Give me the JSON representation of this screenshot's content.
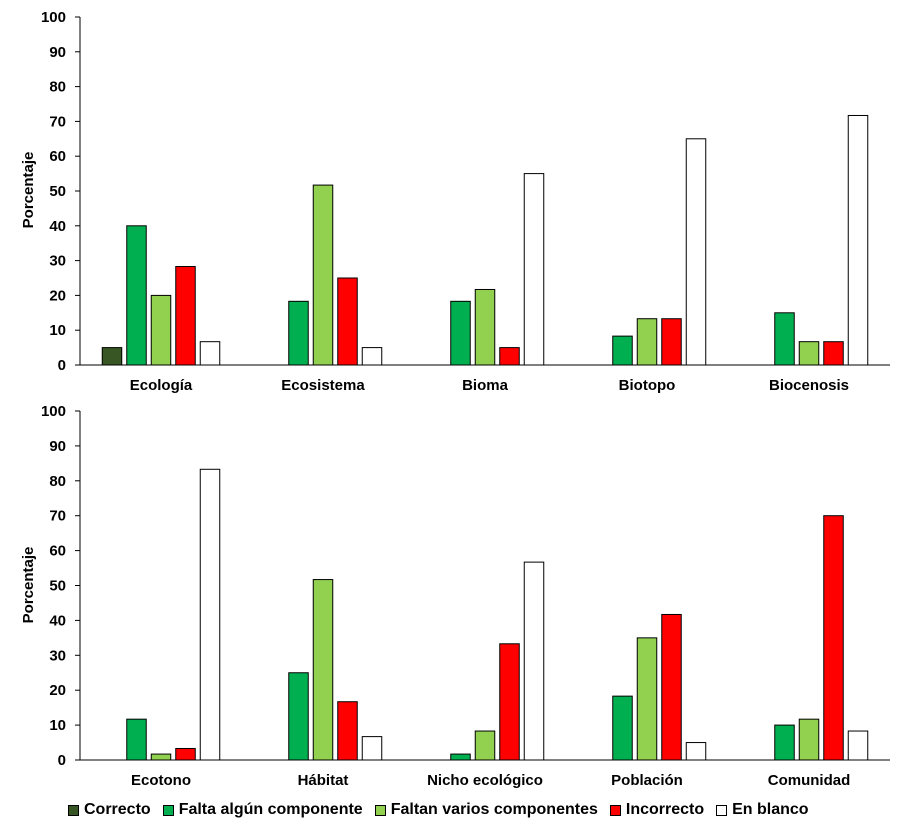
{
  "chart_data": [
    {
      "type": "bar",
      "ylabel": "Porcentaje",
      "ylim": [
        0,
        100
      ],
      "yticks": [
        0,
        10,
        20,
        30,
        40,
        50,
        60,
        70,
        80,
        90,
        100
      ],
      "categories": [
        "Ecología",
        "Ecosistema",
        "Bioma",
        "Biotopo",
        "Biocenosis"
      ],
      "series": [
        {
          "name": "Correcto",
          "values": [
            5,
            0,
            0,
            0,
            0
          ]
        },
        {
          "name": "Falta algún componente",
          "values": [
            40,
            18.3,
            18.3,
            8.3,
            15
          ]
        },
        {
          "name": "Faltan varios componentes",
          "values": [
            20,
            51.7,
            21.7,
            13.3,
            6.7
          ]
        },
        {
          "name": "Incorrecto",
          "values": [
            28.3,
            25,
            5,
            13.3,
            6.7
          ]
        },
        {
          "name": "En blanco",
          "values": [
            6.7,
            5,
            55,
            65,
            71.7
          ]
        }
      ],
      "grid": false,
      "legend": "bottom"
    },
    {
      "type": "bar",
      "ylabel": "Porcentaje",
      "ylim": [
        0,
        100
      ],
      "yticks": [
        0,
        10,
        20,
        30,
        40,
        50,
        60,
        70,
        80,
        90,
        100
      ],
      "categories": [
        "Ecotono",
        "Hábitat",
        "Nicho ecológico",
        "Población",
        "Comunidad"
      ],
      "series": [
        {
          "name": "Correcto",
          "values": [
            0,
            0,
            0,
            0,
            0
          ]
        },
        {
          "name": "Falta algún componente",
          "values": [
            11.7,
            25,
            1.7,
            18.3,
            10
          ]
        },
        {
          "name": "Faltan varios componentes",
          "values": [
            1.7,
            51.7,
            8.3,
            35,
            11.7
          ]
        },
        {
          "name": "Incorrecto",
          "values": [
            3.3,
            16.7,
            33.3,
            41.7,
            70
          ]
        },
        {
          "name": "En blanco",
          "values": [
            83.3,
            6.7,
            56.7,
            5,
            8.3
          ]
        }
      ],
      "grid": false,
      "legend": "bottom"
    }
  ],
  "legend": {
    "items": [
      {
        "label": "Correcto",
        "color": "#375623"
      },
      {
        "label": "Falta algún componente",
        "color": "#00b050"
      },
      {
        "label": "Faltan varios componentes",
        "color": "#92d050"
      },
      {
        "label": "Incorrecto",
        "color": "#ff0000"
      },
      {
        "label": "En blanco",
        "color": "#ffffff"
      }
    ]
  }
}
